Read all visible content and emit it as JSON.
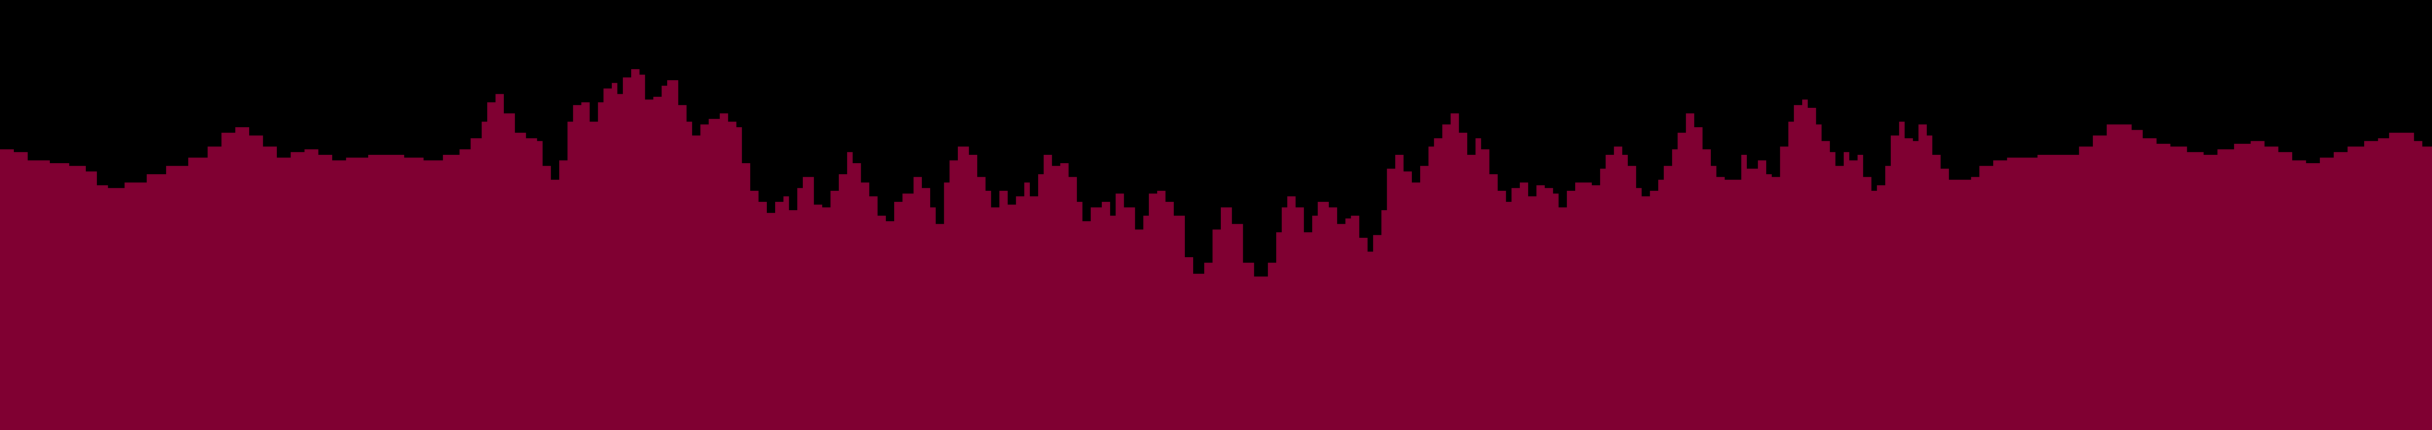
{
  "scene": {
    "type": "pixel-art-background-layer",
    "subject": "forest-silhouette",
    "colors": {
      "sky": "#000000",
      "silhouette": "#800032"
    },
    "layers": [
      "sky",
      "forest-silhouette"
    ]
  }
}
